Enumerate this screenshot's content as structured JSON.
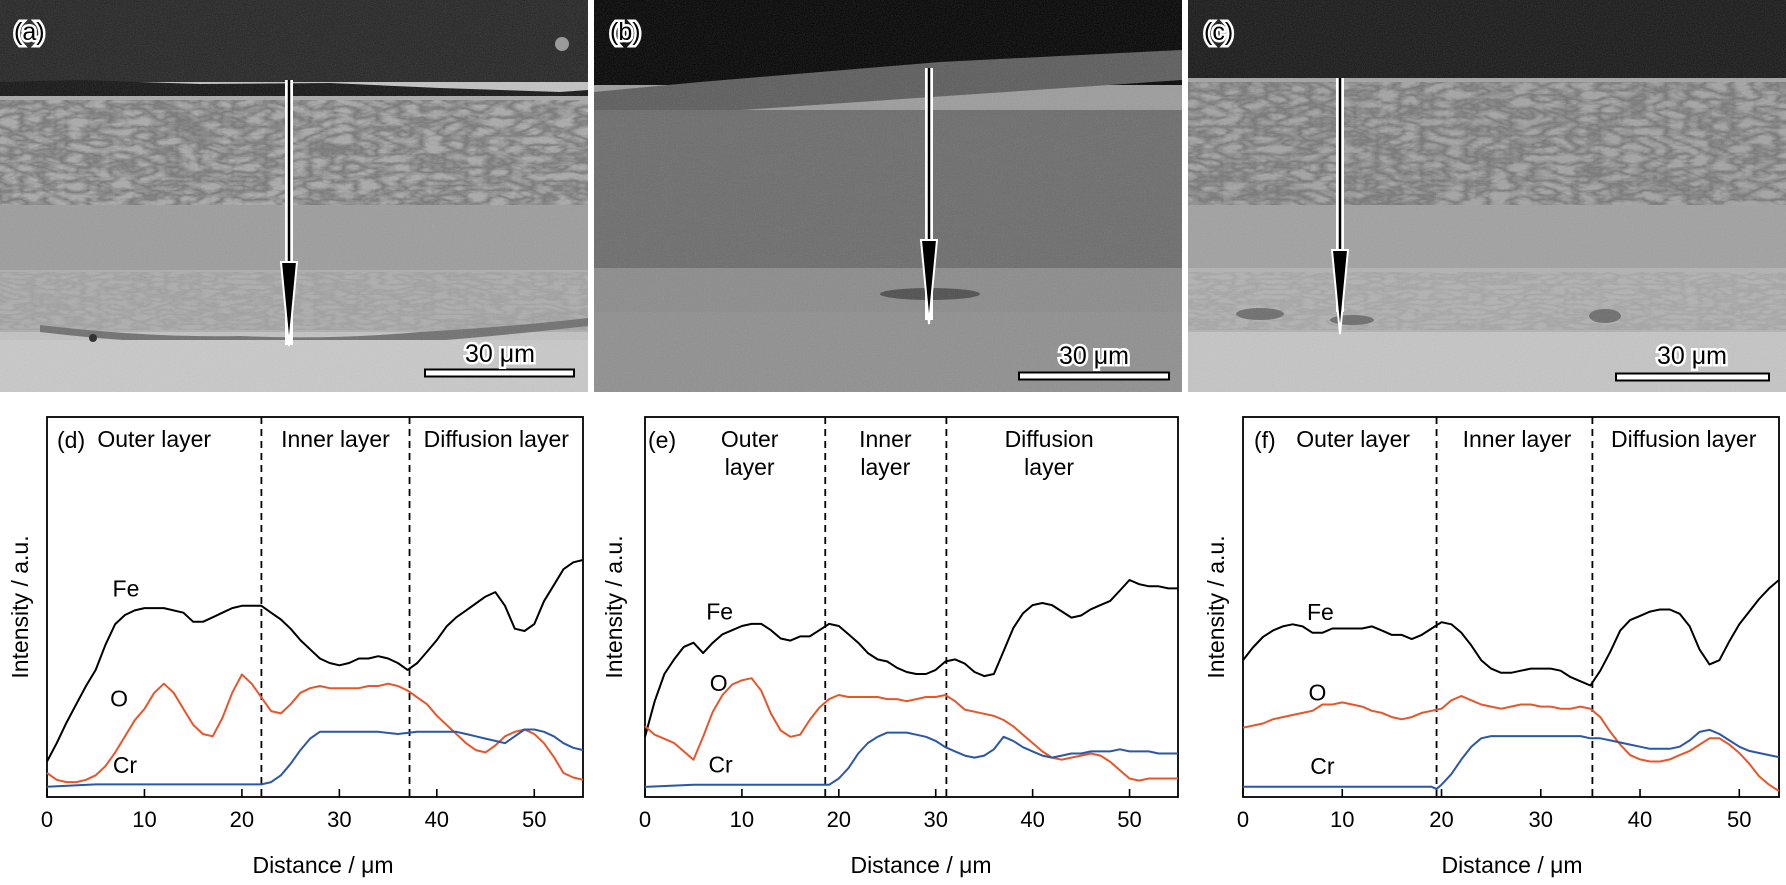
{
  "micrographs": [
    {
      "panel_label": "(a)",
      "scale_bar": "30 μm"
    },
    {
      "panel_label": "(b)",
      "scale_bar": "30 μm"
    },
    {
      "panel_label": "(c)",
      "scale_bar": "30 μm"
    }
  ],
  "colors": {
    "fe": "#000000",
    "o": "#e8552a",
    "cr": "#2b57a6",
    "dash": "#000000"
  },
  "chart_data": [
    {
      "type": "line",
      "panel_label": "(d)",
      "xlabel": "Distance / μm",
      "ylabel": "Intensity / a.u.",
      "xlim": [
        0,
        55
      ],
      "ylim": [
        0,
        100
      ],
      "xticks": [
        0,
        10,
        20,
        30,
        40,
        50
      ],
      "boundaries": [
        22,
        37.2
      ],
      "regions": [
        {
          "label": [
            "Outer layer"
          ],
          "x": 11
        },
        {
          "label": [
            "Inner layer"
          ],
          "x": 29.6
        },
        {
          "label": [
            "Diffusion layer"
          ],
          "x": 46.1
        }
      ],
      "series": [
        {
          "name": "Fe",
          "x": [
            0,
            1,
            2,
            3,
            4,
            5,
            6,
            7,
            8,
            9,
            10,
            12,
            14,
            15,
            16,
            17,
            18,
            19,
            20,
            21,
            22,
            23,
            24,
            25,
            26,
            27,
            28,
            29,
            30,
            31,
            32,
            33,
            34,
            35,
            36,
            37,
            38,
            39,
            40,
            41,
            42,
            43,
            44,
            45,
            46,
            47,
            48,
            49,
            50,
            51,
            52,
            53,
            54,
            55
          ],
          "y": [
            12,
            20,
            29,
            37,
            45,
            52,
            63,
            72,
            76,
            78,
            79,
            79,
            77,
            73,
            73,
            75,
            77,
            79,
            80,
            80,
            80,
            77,
            74,
            70,
            65,
            61,
            57,
            55,
            54,
            55,
            57,
            57,
            58,
            57,
            55,
            52,
            55,
            60,
            65,
            71,
            75,
            78,
            81,
            84,
            86,
            80,
            70,
            69,
            72,
            82,
            89,
            96,
            99,
            100
          ]
        },
        {
          "name": "O",
          "x": [
            0,
            1,
            2,
            3,
            4,
            5,
            6,
            7,
            8,
            9,
            10,
            11,
            12,
            13,
            14,
            15,
            16,
            17,
            18,
            19,
            20,
            21,
            22,
            23,
            24,
            25,
            26,
            27,
            28,
            29,
            30,
            31,
            32,
            33,
            34,
            35,
            36,
            37,
            38,
            39,
            40,
            41,
            42,
            43,
            44,
            45,
            46,
            47,
            48,
            49,
            50,
            51,
            52,
            53,
            54,
            55
          ],
          "y": [
            7,
            4,
            3,
            3,
            4,
            6,
            10,
            16,
            23,
            30,
            35,
            42,
            46,
            42,
            35,
            28,
            24,
            23,
            31,
            42,
            50,
            46,
            40,
            34,
            33,
            37,
            42,
            44,
            45,
            44,
            44,
            44,
            44,
            45,
            45,
            46,
            45,
            43,
            40,
            37,
            32,
            28,
            24,
            20,
            17,
            16,
            19,
            23,
            25,
            26,
            24,
            20,
            14,
            7,
            5,
            4
          ]
        },
        {
          "name": "Cr",
          "x": [
            0,
            5,
            10,
            15,
            20,
            22,
            23,
            24,
            25,
            26,
            27,
            28,
            29,
            30,
            31,
            32,
            34,
            36,
            38,
            40,
            42,
            43,
            44,
            45,
            46,
            47,
            48,
            49,
            50,
            51,
            52,
            53,
            54,
            55
          ],
          "y": [
            1,
            2,
            2,
            2,
            2,
            2,
            3,
            6,
            11,
            17,
            22,
            25,
            25,
            25,
            25,
            25,
            25,
            24,
            25,
            25,
            25,
            24,
            23,
            22,
            21,
            20,
            23,
            26,
            26,
            25,
            23,
            20,
            18,
            17
          ]
        }
      ],
      "series_labels": [
        {
          "name": "Fe",
          "x": 8.1,
          "y": 84
        },
        {
          "name": "O",
          "x": 7.4,
          "y": 36
        },
        {
          "name": "Cr",
          "x": 8,
          "y": 7
        }
      ]
    },
    {
      "type": "line",
      "panel_label": "(e)",
      "xlabel": "Distance / μm",
      "ylabel": "Intensity / a.u.",
      "xlim": [
        0,
        55
      ],
      "ylim": [
        0,
        100
      ],
      "xticks": [
        0,
        10,
        20,
        30,
        40,
        50
      ],
      "boundaries": [
        18.6,
        31.1
      ],
      "regions": [
        {
          "label": [
            "Outer",
            "layer"
          ],
          "x": 10.8
        },
        {
          "label": [
            "Inner",
            "layer"
          ],
          "x": 24.8
        },
        {
          "label": [
            "Diffusion",
            "layer"
          ],
          "x": 41.7
        }
      ],
      "series": [
        {
          "name": "Fe",
          "x": [
            0,
            1,
            2,
            3,
            4,
            5,
            6,
            7,
            8,
            9,
            10,
            11,
            12,
            13,
            14,
            15,
            16,
            17,
            18,
            19,
            20,
            21,
            22,
            23,
            24,
            25,
            26,
            27,
            28,
            29,
            30,
            31,
            32,
            33,
            34,
            35,
            36,
            37,
            38,
            39,
            40,
            41,
            42,
            43,
            44,
            45,
            46,
            47,
            48,
            49,
            50,
            51,
            52,
            53,
            54,
            55
          ],
          "y": [
            25,
            42,
            55,
            62,
            68,
            70,
            65,
            70,
            74,
            76,
            78,
            79,
            79,
            76,
            72,
            71,
            73,
            73,
            76,
            79,
            78,
            74,
            70,
            65,
            62,
            61,
            58,
            56,
            55,
            55,
            57,
            61,
            62,
            60,
            56,
            54,
            55,
            66,
            77,
            84,
            88,
            89,
            88,
            85,
            82,
            83,
            86,
            88,
            90,
            95,
            100,
            98,
            97,
            97,
            96,
            96
          ]
        },
        {
          "name": "O",
          "x": [
            0,
            1,
            2,
            3,
            4,
            5,
            6,
            7,
            8,
            9,
            10,
            11,
            12,
            13,
            14,
            15,
            16,
            17,
            18,
            19,
            20,
            21,
            22,
            23,
            24,
            25,
            26,
            27,
            28,
            29,
            30,
            31,
            32,
            33,
            34,
            35,
            36,
            37,
            38,
            39,
            40,
            41,
            42,
            43,
            44,
            45,
            46,
            47,
            48,
            49,
            50,
            51,
            52,
            53,
            54,
            55
          ],
          "y": [
            30,
            26,
            24,
            22,
            18,
            14,
            25,
            37,
            45,
            50,
            52,
            53,
            47,
            36,
            28,
            25,
            26,
            33,
            39,
            43,
            45,
            44,
            44,
            44,
            44,
            43,
            43,
            42,
            43,
            44,
            44,
            45,
            42,
            38,
            37,
            36,
            35,
            33,
            30,
            26,
            22,
            18,
            15,
            14,
            15,
            16,
            17,
            16,
            13,
            9,
            5,
            4,
            5,
            5,
            5,
            5
          ]
        },
        {
          "name": "Cr",
          "x": [
            0,
            5,
            10,
            15,
            18,
            19,
            20,
            21,
            22,
            23,
            24,
            25,
            26,
            27,
            28,
            29,
            30,
            31,
            32,
            33,
            34,
            35,
            36,
            37,
            38,
            39,
            40,
            41,
            42,
            43,
            44,
            45,
            46,
            47,
            48,
            49,
            50,
            51,
            52,
            53,
            54,
            55
          ],
          "y": [
            1,
            2,
            2,
            2,
            2,
            2,
            5,
            10,
            17,
            22,
            25,
            27,
            27,
            27,
            26,
            25,
            23,
            20,
            18,
            16,
            15,
            16,
            19,
            25,
            23,
            20,
            18,
            16,
            15,
            16,
            17,
            17,
            18,
            18,
            18,
            19,
            18,
            18,
            18,
            17,
            17,
            17
          ]
        }
      ],
      "series_labels": [
        {
          "name": "Fe",
          "x": 7.7,
          "y": 81
        },
        {
          "name": "O",
          "x": 7.6,
          "y": 47
        },
        {
          "name": "Cr",
          "x": 7.8,
          "y": 8
        }
      ]
    },
    {
      "type": "line",
      "panel_label": "(f)",
      "xlabel": "Distance / μm",
      "ylabel": "Intensity / a.u.",
      "xlim": [
        0,
        54
      ],
      "ylim": [
        0,
        100
      ],
      "xticks": [
        0,
        10,
        20,
        30,
        40,
        50
      ],
      "boundaries": [
        19.5,
        35.2
      ],
      "regions": [
        {
          "label": [
            "Outer layer"
          ],
          "x": 11.1
        },
        {
          "label": [
            "Inner layer"
          ],
          "x": 27.6
        },
        {
          "label": [
            "Diffusion layer"
          ],
          "x": 44.4
        }
      ],
      "series": [
        {
          "name": "Fe",
          "x": [
            0,
            1,
            2,
            3,
            4,
            5,
            6,
            7,
            8,
            9,
            10,
            11,
            12,
            13,
            14,
            15,
            16,
            17,
            18,
            19,
            20,
            21,
            22,
            23,
            24,
            25,
            26,
            27,
            28,
            29,
            30,
            31,
            32,
            33,
            34,
            35,
            36,
            37,
            38,
            39,
            40,
            41,
            42,
            43,
            44,
            45,
            46,
            47,
            48,
            49,
            50,
            51,
            52,
            53,
            54
          ],
          "y": [
            62,
            68,
            73,
            76,
            78,
            79,
            78,
            75,
            75,
            77,
            77,
            77,
            77,
            78,
            76,
            74,
            74,
            72,
            74,
            77,
            80,
            79,
            75,
            69,
            62,
            58,
            56,
            56,
            57,
            58,
            58,
            58,
            57,
            54,
            52,
            50,
            57,
            66,
            76,
            81,
            83,
            85,
            86,
            86,
            84,
            78,
            67,
            60,
            62,
            71,
            79,
            85,
            91,
            96,
            100
          ]
        },
        {
          "name": "O",
          "x": [
            0,
            1,
            2,
            3,
            4,
            5,
            6,
            7,
            8,
            9,
            10,
            11,
            12,
            13,
            14,
            15,
            16,
            17,
            18,
            19,
            20,
            21,
            22,
            23,
            24,
            25,
            26,
            27,
            28,
            29,
            30,
            31,
            32,
            33,
            34,
            35,
            36,
            37,
            38,
            39,
            40,
            41,
            42,
            43,
            44,
            45,
            46,
            47,
            48,
            49,
            50,
            51,
            52,
            53,
            54
          ],
          "y": [
            30,
            31,
            32,
            34,
            35,
            36,
            37,
            38,
            41,
            41,
            42,
            41,
            40,
            38,
            37,
            35,
            34,
            35,
            37,
            38,
            39,
            43,
            45,
            43,
            41,
            40,
            39,
            40,
            41,
            41,
            40,
            40,
            39,
            39,
            40,
            39,
            35,
            28,
            22,
            17,
            15,
            14,
            14,
            15,
            17,
            19,
            22,
            25,
            25,
            22,
            18,
            13,
            7,
            3,
            0
          ]
        },
        {
          "name": "Cr",
          "x": [
            0,
            5,
            10,
            15,
            19,
            19.5,
            20,
            21,
            22,
            23,
            24,
            25,
            26,
            27,
            28,
            29,
            30,
            31,
            32,
            33,
            34,
            35,
            36,
            37,
            38,
            39,
            40,
            41,
            42,
            43,
            44,
            45,
            46,
            47,
            48,
            49,
            50,
            51,
            52,
            53,
            54
          ],
          "y": [
            2,
            2,
            2,
            2,
            2,
            1,
            3,
            8,
            15,
            21,
            25,
            26,
            26,
            26,
            26,
            26,
            26,
            26,
            26,
            26,
            26,
            25,
            25,
            24,
            23,
            22,
            21,
            20,
            20,
            20,
            21,
            24,
            28,
            29,
            27,
            24,
            21,
            19,
            18,
            17,
            16
          ]
        }
      ],
      "series_labels": [
        {
          "name": "Fe",
          "x": 7.8,
          "y": 81
        },
        {
          "name": "O",
          "x": 7.5,
          "y": 43
        },
        {
          "name": "Cr",
          "x": 8,
          "y": 8
        }
      ]
    }
  ]
}
